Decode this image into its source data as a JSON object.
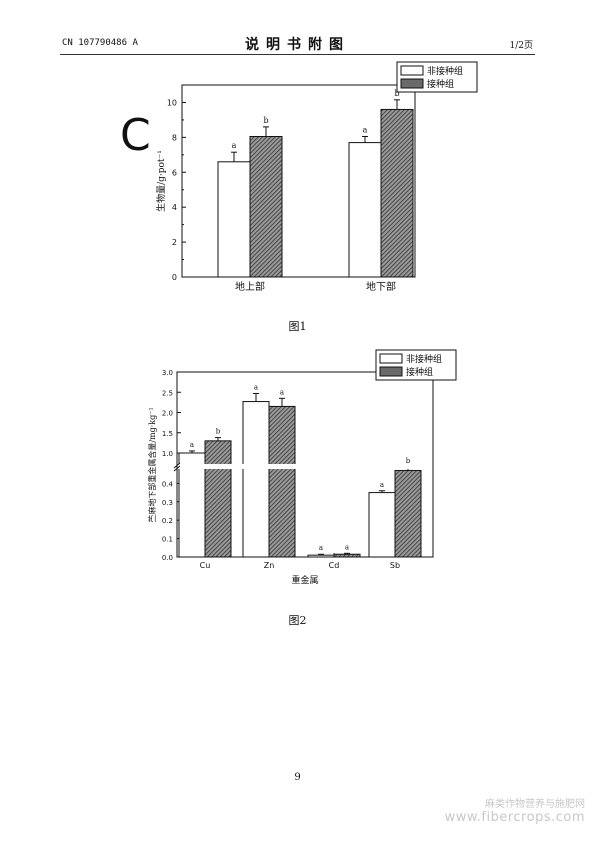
{
  "header": {
    "left": "CN 107790486 A",
    "center": "说明书附图",
    "right": "1/2页"
  },
  "colors": {
    "control": "#ffffff",
    "inoculated": "#6a6a6a",
    "axis": "#111111"
  },
  "chart_data": [
    {
      "type": "bar",
      "panel_letter": "C",
      "categories": [
        "地上部",
        "地下部"
      ],
      "series": [
        {
          "name": "非接种组",
          "values": [
            6.6,
            7.7
          ],
          "errors": [
            0.55,
            0.35
          ],
          "letters": [
            "a",
            "a"
          ]
        },
        {
          "name": "接种组",
          "values": [
            8.05,
            9.6
          ],
          "errors": [
            0.55,
            0.55
          ],
          "letters": [
            "b",
            "b"
          ]
        }
      ],
      "ylabel": "生物量/g·pot⁻¹",
      "ylim": [
        0,
        11
      ],
      "yticks": [
        "0",
        "2",
        "4",
        "6",
        "8",
        "10"
      ],
      "legend": "top-right",
      "caption": "图1"
    },
    {
      "type": "bar",
      "categories": [
        "Cu",
        "Zn",
        "Cd",
        "Sb"
      ],
      "series": [
        {
          "name": "非接种组",
          "values": [
            1.0,
            2.27,
            0.01,
            0.35
          ],
          "errors": [
            0.05,
            0.2,
            0.005,
            0.01
          ],
          "letters": [
            "a",
            "a",
            "a",
            "a"
          ]
        },
        {
          "name": "接种组",
          "values": [
            1.3,
            2.15,
            0.015,
            0.47
          ],
          "errors": [
            0.08,
            0.2,
            0.005,
            0.02
          ],
          "letters": [
            "b",
            "a",
            "a",
            "b"
          ]
        }
      ],
      "xlabel": "重金属",
      "ylabel": "苎麻地下部重金属含量/mg·kg⁻¹",
      "y_axis_break": true,
      "yticks_lower": [
        "0.0",
        "0.1",
        "0.2",
        "0.3",
        "0.4"
      ],
      "yticks_upper": [
        "1.0",
        "1.5",
        "2.0",
        "2.5",
        "3.0"
      ],
      "legend": "top-right",
      "caption": "图2"
    }
  ],
  "page_number": "9",
  "watermark": {
    "text": "麻类作物营养与施肥网",
    "url": "www.fibercrops.com"
  }
}
